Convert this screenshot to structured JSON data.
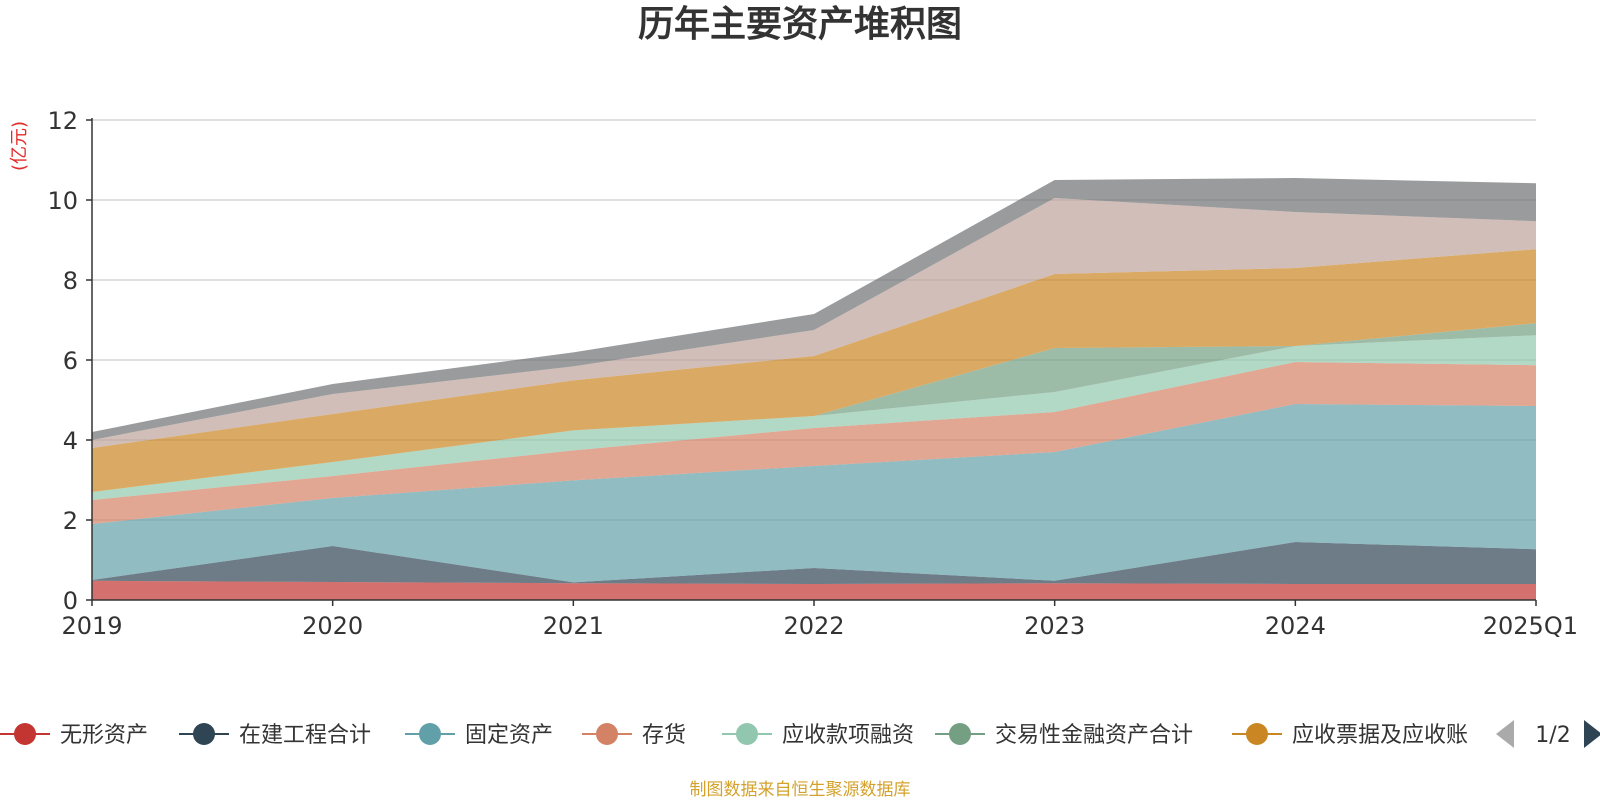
{
  "chart_data": {
    "type": "area",
    "stacked": true,
    "title": "历年主要资产堆积图",
    "ylabel": "(亿元)",
    "xlabel": "",
    "categories": [
      "2019",
      "2020",
      "2021",
      "2022",
      "2023",
      "2024",
      "2025Q1"
    ],
    "ylim": [
      0,
      12
    ],
    "yticks": [
      0,
      2,
      4,
      6,
      8,
      10,
      12
    ],
    "grid": true,
    "legend_position": "bottom",
    "series": [
      {
        "name": "无形资产",
        "color": "#c23531",
        "values": [
          0.48,
          0.45,
          0.42,
          0.4,
          0.42,
          0.4,
          0.4
        ]
      },
      {
        "name": "在建工程合计",
        "color": "#2f4554",
        "values": [
          0.02,
          0.9,
          0.02,
          0.4,
          0.06,
          1.05,
          0.87
        ]
      },
      {
        "name": "固定资产",
        "color": "#61a0a8",
        "values": [
          1.4,
          1.2,
          2.55,
          2.55,
          3.22,
          3.45,
          3.58
        ]
      },
      {
        "name": "存货",
        "color": "#d48265",
        "values": [
          0.6,
          0.55,
          0.75,
          0.95,
          1.0,
          1.05,
          1.02
        ]
      },
      {
        "name": "应收款项融资",
        "color": "#91c7ae",
        "values": [
          0.2,
          0.35,
          0.5,
          0.3,
          0.5,
          0.4,
          0.75
        ]
      },
      {
        "name": "交易性金融资产合计",
        "color": "#749f83",
        "values": [
          0.0,
          0.0,
          0.0,
          0.0,
          1.1,
          0.0,
          0.3
        ]
      },
      {
        "name": "应收票据及应收账",
        "color": "#ca8622",
        "values": [
          1.1,
          1.2,
          1.25,
          1.5,
          1.85,
          1.95,
          1.85
        ]
      },
      {
        "name": "",
        "color": "#bda29a",
        "values": [
          0.2,
          0.5,
          0.35,
          0.65,
          1.9,
          1.4,
          0.7
        ]
      },
      {
        "name": "",
        "color": "#6e7074",
        "values": [
          0.2,
          0.25,
          0.35,
          0.4,
          0.45,
          0.85,
          0.95
        ]
      }
    ]
  },
  "legend": {
    "items": [
      "无形资产",
      "在建工程合计",
      "固定资产",
      "存货",
      "应收款项融资",
      "交易性金融资产合计",
      "应收票据及应收账"
    ],
    "page_label": "1/2"
  },
  "source_note": "制图数据来自恒生聚源数据库",
  "colors": {
    "unit_label": "#e32b2b",
    "source_note": "#d4a22c",
    "grid": "#cccccc",
    "axis": "#333333",
    "pager_inactive": "#aaaaaa",
    "pager_active": "#2f4554"
  }
}
